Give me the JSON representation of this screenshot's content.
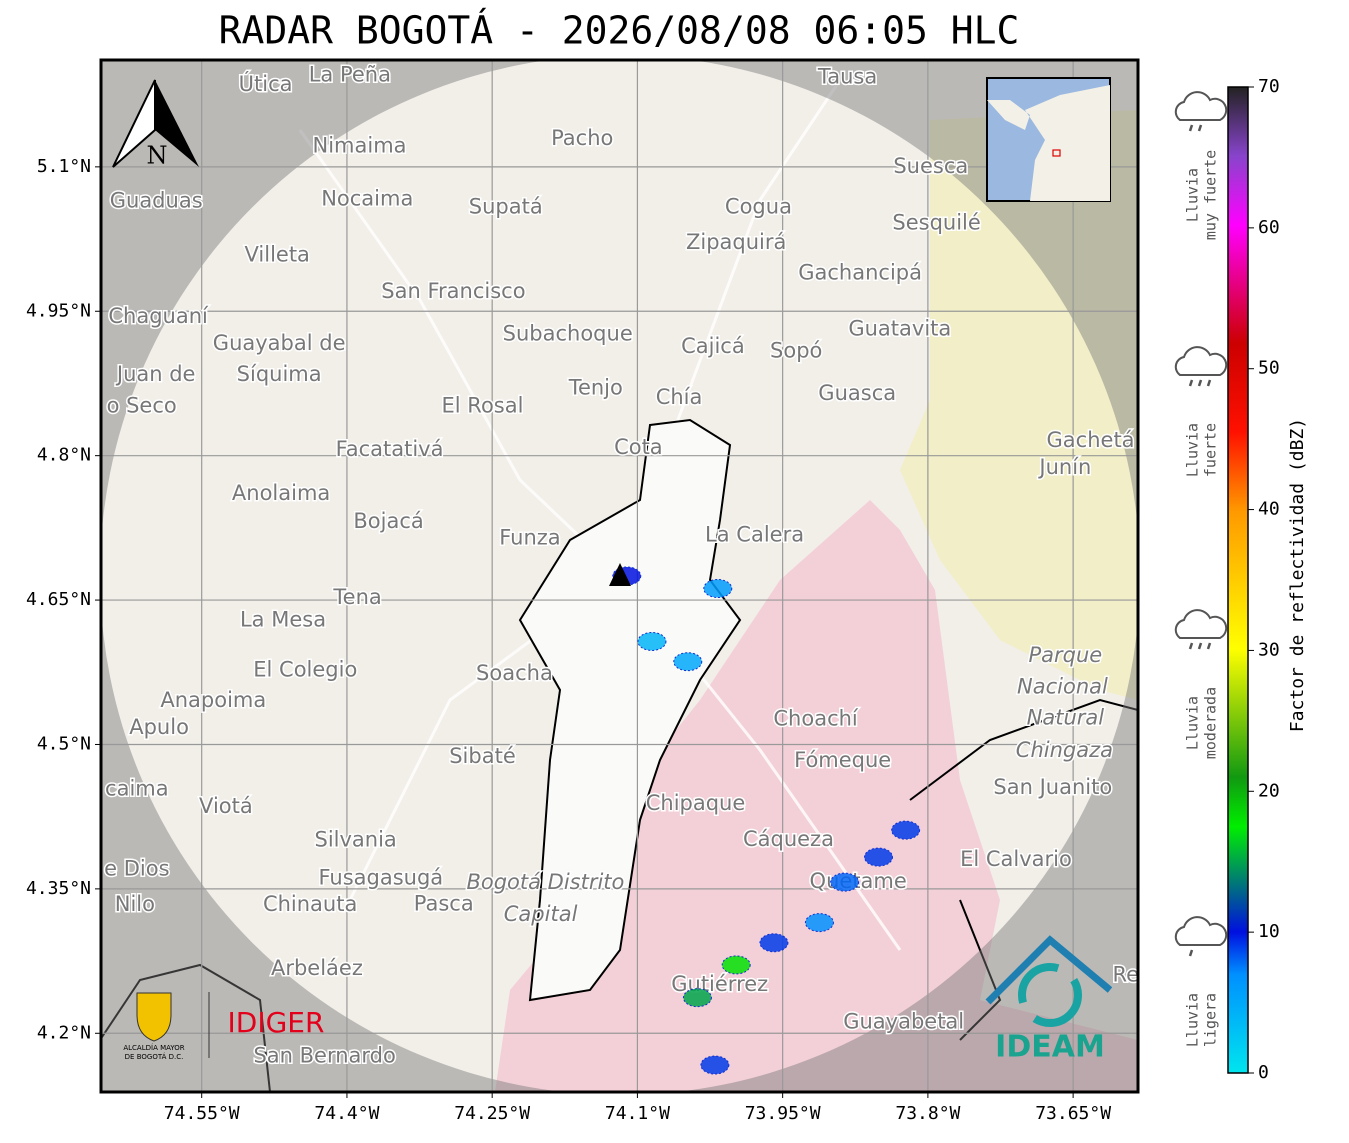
{
  "header": {
    "title": "RADAR BOGOTÁ - 2026/08/08 06:05 HLC"
  },
  "map": {
    "xlim": [
      -74.654,
      -73.583
    ],
    "ylim": [
      4.139,
      5.211
    ],
    "xticks": [
      {
        "value": -74.55,
        "label": "74.55°W"
      },
      {
        "value": -74.4,
        "label": "74.4°W"
      },
      {
        "value": -74.25,
        "label": "74.25°W"
      },
      {
        "value": -74.1,
        "label": "74.1°W"
      },
      {
        "value": -73.95,
        "label": "73.95°W"
      },
      {
        "value": -73.8,
        "label": "73.8°W"
      },
      {
        "value": -73.65,
        "label": "73.65°W"
      }
    ],
    "yticks": [
      {
        "value": 5.1,
        "label": "5.1°N"
      },
      {
        "value": 4.95,
        "label": "4.95°N"
      },
      {
        "value": 4.8,
        "label": "4.8°N"
      },
      {
        "value": 4.65,
        "label": "4.65°N"
      },
      {
        "value": 4.5,
        "label": "4.5°N"
      },
      {
        "value": 4.35,
        "label": "4.35°N"
      },
      {
        "value": 4.2,
        "label": "4.2°N"
      }
    ],
    "grid": true,
    "places": [
      {
        "name": "Útica",
        "lon": -74.484,
        "lat": 5.185
      },
      {
        "name": "La Peña",
        "lon": -74.397,
        "lat": 5.195
      },
      {
        "name": "Tausa",
        "lon": -73.883,
        "lat": 5.193
      },
      {
        "name": "Pacho",
        "lon": -74.157,
        "lat": 5.129
      },
      {
        "name": "Nimaima",
        "lon": -74.387,
        "lat": 5.121
      },
      {
        "name": "Guaduas",
        "lon": -74.597,
        "lat": 5.064
      },
      {
        "name": "Nocaima",
        "lon": -74.379,
        "lat": 5.066
      },
      {
        "name": "Supatá",
        "lon": -74.236,
        "lat": 5.058
      },
      {
        "name": "Cogua",
        "lon": -73.975,
        "lat": 5.058
      },
      {
        "name": "Suesca",
        "lon": -73.797,
        "lat": 5.1
      },
      {
        "name": "Sesquilé",
        "lon": -73.791,
        "lat": 5.041
      },
      {
        "name": "Zipaquirá",
        "lon": -73.998,
        "lat": 5.021
      },
      {
        "name": "Villeta",
        "lon": -74.472,
        "lat": 5.008
      },
      {
        "name": "Gachancipá",
        "lon": -73.87,
        "lat": 4.989
      },
      {
        "name": "San Francisco",
        "lon": -74.29,
        "lat": 4.97
      },
      {
        "name": "Chaguaní",
        "lon": -74.595,
        "lat": 4.944
      },
      {
        "name": "Subachoque",
        "lon": -74.172,
        "lat": 4.926
      },
      {
        "name": "Guatavita",
        "lon": -73.829,
        "lat": 4.931
      },
      {
        "name": "Cajicá",
        "lon": -74.022,
        "lat": 4.913
      },
      {
        "name": "Sopó",
        "lon": -73.936,
        "lat": 4.908
      },
      {
        "name": "Guayabal de",
        "lon": -74.47,
        "lat": 4.916
      },
      {
        "name": "Síquima",
        "lon": -74.47,
        "lat": 4.884
      },
      {
        "name": "Juan de",
        "lon": -74.597,
        "lat": 4.884
      },
      {
        "name": "o Seco",
        "lon": -74.612,
        "lat": 4.851
      },
      {
        "name": "Tenjo",
        "lon": -74.143,
        "lat": 4.87
      },
      {
        "name": "Chía",
        "lon": -74.057,
        "lat": 4.86
      },
      {
        "name": "El Rosal",
        "lon": -74.26,
        "lat": 4.851
      },
      {
        "name": "Guasca",
        "lon": -73.873,
        "lat": 4.864
      },
      {
        "name": "Facatativá",
        "lon": -74.356,
        "lat": 4.806
      },
      {
        "name": "Cota",
        "lon": -74.099,
        "lat": 4.808
      },
      {
        "name": "Gachetá",
        "lon": -73.632,
        "lat": 4.815
      },
      {
        "name": "Junín",
        "lon": -73.658,
        "lat": 4.787
      },
      {
        "name": "Anolaima",
        "lon": -74.468,
        "lat": 4.76
      },
      {
        "name": "Bojacá",
        "lon": -74.357,
        "lat": 4.731
      },
      {
        "name": "Funza",
        "lon": -74.211,
        "lat": 4.714
      },
      {
        "name": "La Calera",
        "lon": -73.979,
        "lat": 4.717
      },
      {
        "name": "Tena",
        "lon": -74.389,
        "lat": 4.652
      },
      {
        "name": "La Mesa",
        "lon": -74.466,
        "lat": 4.629
      },
      {
        "name": "Soacha",
        "lon": -74.227,
        "lat": 4.573
      },
      {
        "name": "El Colegio",
        "lon": -74.443,
        "lat": 4.577
      },
      {
        "name": "Anapoima",
        "lon": -74.538,
        "lat": 4.545
      },
      {
        "name": "Apulo",
        "lon": -74.594,
        "lat": 4.517
      },
      {
        "name": "Choachí",
        "lon": -73.916,
        "lat": 4.526
      },
      {
        "name": "Sibaté",
        "lon": -74.26,
        "lat": 4.487
      },
      {
        "name": "Fómeque",
        "lon": -73.888,
        "lat": 4.483
      },
      {
        "name": "San Juanito",
        "lon": -73.671,
        "lat": 4.455
      },
      {
        "name": "caima",
        "lon": -74.617,
        "lat": 4.453
      },
      {
        "name": "Viotá",
        "lon": -74.525,
        "lat": 4.435
      },
      {
        "name": "Chipaque",
        "lon": -74.04,
        "lat": 4.438
      },
      {
        "name": "Cáqueza",
        "lon": -73.944,
        "lat": 4.401
      },
      {
        "name": "Silvania",
        "lon": -74.391,
        "lat": 4.4
      },
      {
        "name": "e Dios",
        "lon": -74.617,
        "lat": 4.37
      },
      {
        "name": "El Calvario",
        "lon": -73.709,
        "lat": 4.38
      },
      {
        "name": "Quetame",
        "lon": -73.872,
        "lat": 4.357
      },
      {
        "name": "Fusagasugá",
        "lon": -74.365,
        "lat": 4.361
      },
      {
        "name": "Chinauta",
        "lon": -74.438,
        "lat": 4.333
      },
      {
        "name": "Pasca",
        "lon": -74.3,
        "lat": 4.334
      },
      {
        "name": "Nilo",
        "lon": -74.619,
        "lat": 4.333
      },
      {
        "name": "Arbeláez",
        "lon": -74.431,
        "lat": 4.267
      },
      {
        "name": "Gutiérrez",
        "lon": -74.015,
        "lat": 4.25
      },
      {
        "name": "Guayabetal",
        "lon": -73.825,
        "lat": 4.211
      },
      {
        "name": "San Bernardo",
        "lon": -74.423,
        "lat": 4.176
      },
      {
        "name": "Res",
        "lon": -73.59,
        "lat": 4.26
      }
    ],
    "areas": [
      {
        "name": "Parque",
        "lon": -73.658,
        "lat": 4.592
      },
      {
        "name": "Nacional",
        "lon": -73.661,
        "lat": 4.559
      },
      {
        "name": "Natural",
        "lon": -73.658,
        "lat": 4.527
      },
      {
        "name": "Chingaza",
        "lon": -73.659,
        "lat": 4.493
      },
      {
        "name": "Bogotá Distrito",
        "lon": -74.195,
        "lat": 4.356
      },
      {
        "name": "Capital",
        "lon": -74.2,
        "lat": 4.323
      }
    ],
    "echoes": [
      {
        "lon": -74.111,
        "lat": 4.675,
        "dbz": 10
      },
      {
        "lon": -74.085,
        "lat": 4.607,
        "dbz": 4
      },
      {
        "lon": -74.048,
        "lat": 4.586,
        "dbz": 5
      },
      {
        "lon": -74.017,
        "lat": 4.662,
        "dbz": 6
      },
      {
        "lon": -73.886,
        "lat": 4.357,
        "dbz": 8
      },
      {
        "lon": -73.823,
        "lat": 4.411,
        "dbz": 9
      },
      {
        "lon": -73.851,
        "lat": 4.383,
        "dbz": 9
      },
      {
        "lon": -73.912,
        "lat": 4.315,
        "dbz": 7
      },
      {
        "lon": -73.959,
        "lat": 4.294,
        "dbz": 9
      },
      {
        "lon": -73.998,
        "lat": 4.271,
        "dbz": 18
      },
      {
        "lon": -74.038,
        "lat": 4.237,
        "dbz": 15
      },
      {
        "lon": -74.02,
        "lat": 4.167,
        "dbz": 9
      }
    ]
  },
  "colorbar": {
    "label": "Factor de reflectividad (dBZ)",
    "lim": [
      0,
      70
    ],
    "ticks": [
      0,
      10,
      20,
      30,
      40,
      50,
      60,
      70
    ]
  },
  "rain_levels": [
    {
      "lines": [
        "Lluvia",
        "muy fuerte"
      ]
    },
    {
      "lines": [
        "Lluvia",
        "fuerte"
      ]
    },
    {
      "lines": [
        "Lluvia",
        "moderada"
      ]
    },
    {
      "lines": [
        "Lluvia",
        "ligera"
      ]
    }
  ],
  "logos": {
    "north": "N",
    "alcaldia": [
      "ALCALDÍA MAYOR",
      "DE BOGOTÁ D.C."
    ],
    "idiger": "IDIGER",
    "ideam": "IDEAM"
  }
}
